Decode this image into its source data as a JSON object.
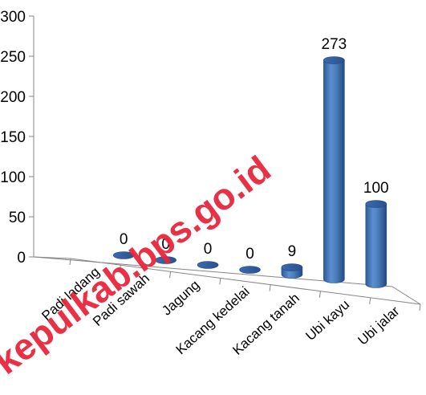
{
  "chart_data": {
    "type": "bar",
    "categories": [
      "Padi ladang",
      "Padi sawah",
      "Jagung",
      "Kacang kedelai",
      "Kacang tanah",
      "Ubi kayu",
      "Ubi jalar"
    ],
    "values": [
      0,
      0,
      0,
      0,
      9,
      273,
      100
    ],
    "data_labels": [
      "0",
      "0",
      "0",
      "0",
      "9",
      "273",
      "100"
    ],
    "y_ticks": [
      "0",
      "50",
      "100",
      "150",
      "200",
      "250",
      "300"
    ],
    "ylim": [
      0,
      300
    ],
    "title": "",
    "xlabel": "",
    "ylabel": "",
    "grid": false,
    "style": "3d-cylinder",
    "bar_color": "#4a7ebb"
  },
  "watermark": {
    "text": "kepulkab.bps.go.id",
    "color": "#e8253a"
  }
}
